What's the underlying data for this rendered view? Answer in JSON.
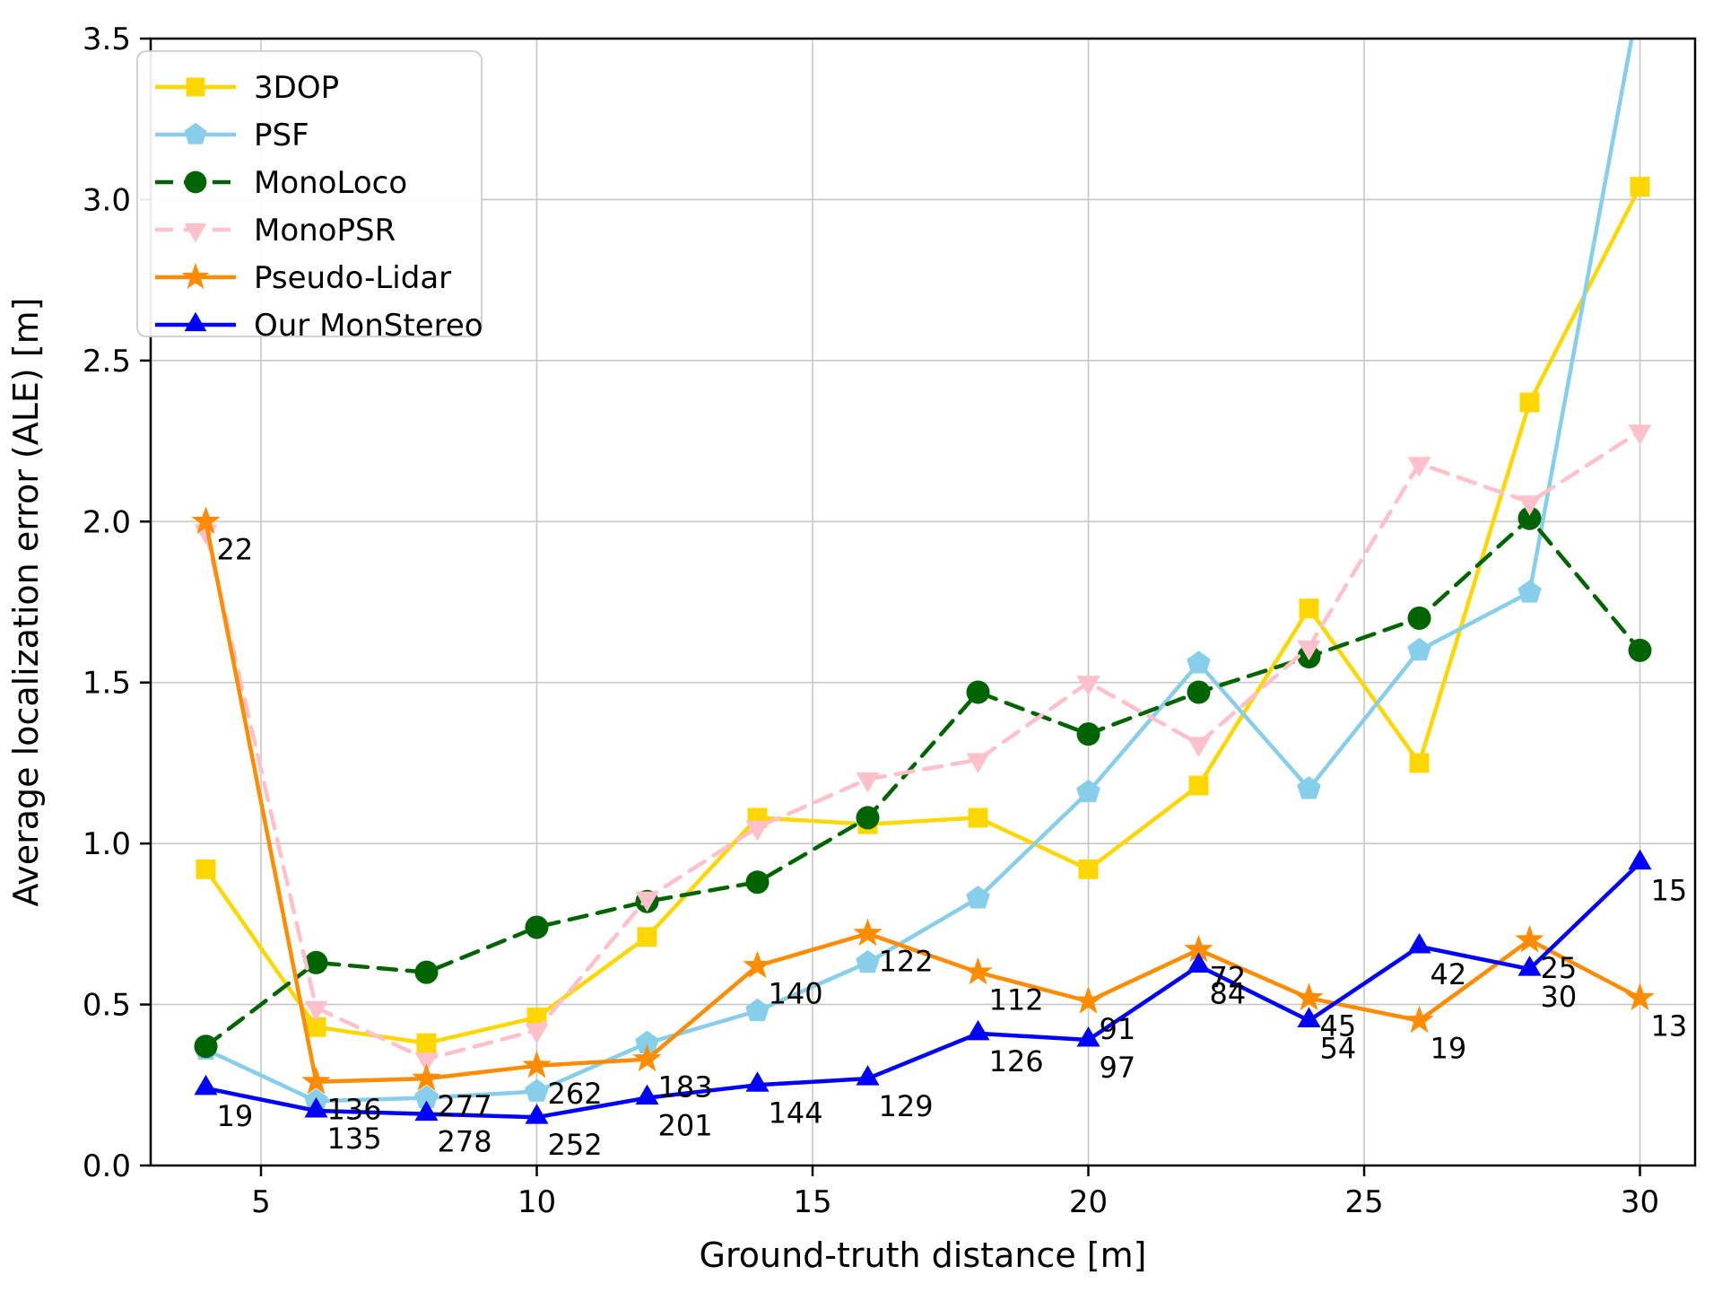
{
  "figure": {
    "background": "#ffffff",
    "grid_color": "#c8c8c8",
    "axis_color": "#000000",
    "tick_label_color": "#000000",
    "legend_border_color": "#cccccc",
    "legend_background": "#ffffff"
  },
  "chart_data": {
    "type": "line",
    "title": "",
    "xlabel": "Ground-truth distance [m]",
    "ylabel": "Average localization error (ALE) [m]",
    "xlim": [
      3,
      31
    ],
    "ylim": [
      0,
      3.5
    ],
    "xticks": [
      5,
      10,
      15,
      20,
      25,
      30
    ],
    "yticks": [
      0.0,
      0.5,
      1.0,
      1.5,
      2.0,
      2.5,
      3.0,
      3.5
    ],
    "grid": true,
    "legend_position": "upper left",
    "x": [
      4,
      6,
      8,
      10,
      12,
      14,
      16,
      18,
      20,
      22,
      24,
      26,
      28,
      30
    ],
    "series": [
      {
        "name": "3DOP",
        "color": "#FFD700",
        "marker": "square",
        "linestyle": "solid",
        "values": [
          0.92,
          0.43,
          0.38,
          0.46,
          0.71,
          1.08,
          1.06,
          1.08,
          0.92,
          1.18,
          1.73,
          1.25,
          2.37,
          3.04
        ]
      },
      {
        "name": "PSF",
        "color": "#87CEEB",
        "marker": "pentagon",
        "linestyle": "solid",
        "values": [
          0.36,
          0.2,
          0.21,
          0.23,
          0.38,
          0.48,
          0.63,
          0.83,
          1.16,
          1.56,
          1.17,
          1.6,
          1.78,
          3.64
        ]
      },
      {
        "name": "MonoLoco",
        "color": "#006400",
        "marker": "circle",
        "linestyle": "dashed",
        "values": [
          0.37,
          0.63,
          0.6,
          0.74,
          0.82,
          0.88,
          1.08,
          1.47,
          1.34,
          1.47,
          1.58,
          1.7,
          2.01,
          1.6
        ]
      },
      {
        "name": "MonoPSR",
        "color": "#FFC0CB",
        "marker": "triangle-down",
        "linestyle": "dashed",
        "values": [
          1.97,
          0.49,
          0.33,
          0.42,
          0.83,
          1.05,
          1.2,
          1.26,
          1.5,
          1.31,
          1.61,
          2.18,
          2.06,
          2.28
        ]
      },
      {
        "name": "Pseudo-Lidar",
        "color": "#FF8C00",
        "marker": "star",
        "linestyle": "solid",
        "values": [
          2.0,
          0.26,
          0.27,
          0.31,
          0.33,
          0.62,
          0.72,
          0.6,
          0.51,
          0.67,
          0.52,
          0.45,
          0.7,
          0.52
        ]
      },
      {
        "name": "Our MonStereo",
        "color": "#0000FF",
        "marker": "triangle-up",
        "linestyle": "solid",
        "values": [
          0.24,
          0.17,
          0.16,
          0.15,
          0.21,
          0.25,
          0.27,
          0.41,
          0.39,
          0.62,
          0.45,
          0.68,
          0.61,
          0.94
        ]
      }
    ],
    "point_labels": [
      {
        "series": "Pseudo-Lidar",
        "values": [
          22,
          136,
          277,
          262,
          183,
          140,
          122,
          112,
          91,
          72,
          45,
          19,
          25,
          13
        ]
      },
      {
        "series": "Our MonStereo",
        "values": [
          19,
          135,
          278,
          252,
          201,
          144,
          129,
          126,
          97,
          84,
          54,
          42,
          30,
          15
        ]
      }
    ],
    "legend_entries": [
      "3DOP",
      "PSF",
      "MonoLoco",
      "MonoPSR",
      "Pseudo-Lidar",
      "Our MonStereo"
    ]
  }
}
